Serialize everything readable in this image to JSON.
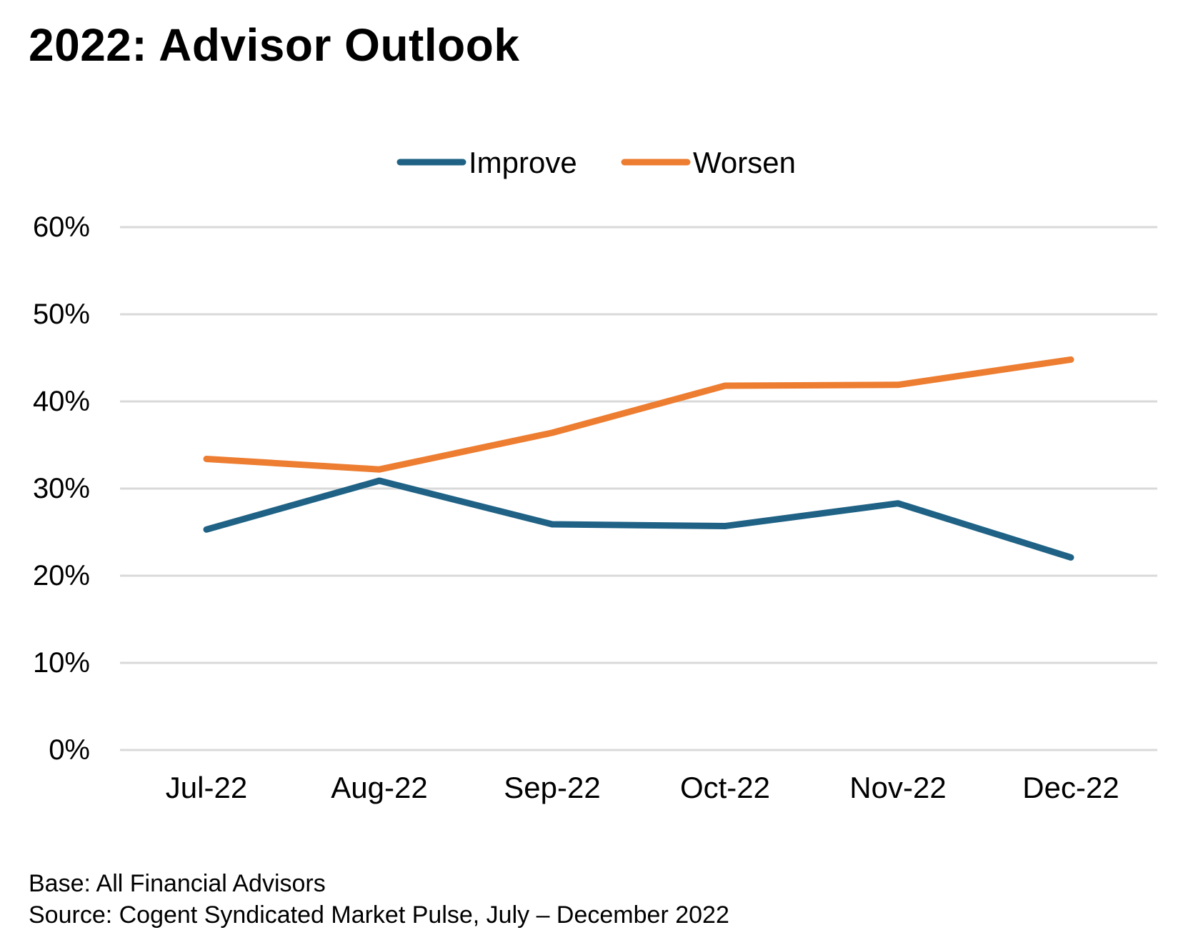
{
  "chart_data": {
    "type": "line",
    "title": "2022: Advisor Outlook",
    "categories": [
      "Jul-22",
      "Aug-22",
      "Sep-22",
      "Oct-22",
      "Nov-22",
      "Dec-22"
    ],
    "series": [
      {
        "name": "Improve",
        "color": "#1F6285",
        "values": [
          25.3,
          30.9,
          25.9,
          25.7,
          28.3,
          22.1
        ]
      },
      {
        "name": "Worsen",
        "color": "#ED7D31",
        "values": [
          33.4,
          32.2,
          36.4,
          41.8,
          41.9,
          44.8
        ]
      }
    ],
    "y_ticks": [
      "0%",
      "10%",
      "20%",
      "30%",
      "40%",
      "50%",
      "60%"
    ],
    "ylim": [
      0,
      60
    ],
    "grid": true,
    "legend_position": "top-center",
    "xlabel": "",
    "ylabel": ""
  },
  "footnotes": {
    "base": "Base: All Financial Advisors",
    "source": "Source: Cogent Syndicated Market Pulse, July – December 2022"
  }
}
